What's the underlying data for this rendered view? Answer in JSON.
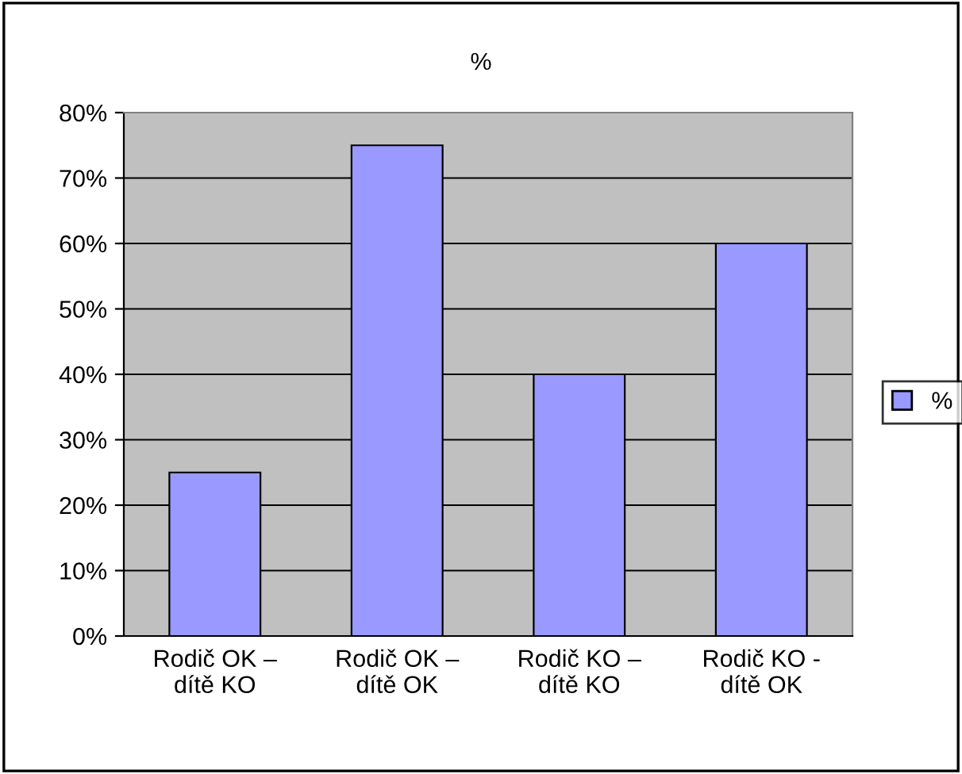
{
  "chart_data": {
    "type": "bar",
    "title": "%",
    "categories": [
      "Rodič OK –\ndítě KO",
      "Rodič OK –\ndítě OK",
      "Rodič KO –\ndítě KO",
      "Rodič KO -\ndítě OK"
    ],
    "series": [
      {
        "name": "%",
        "color": "#9999ff",
        "values": [
          25,
          75,
          40,
          60
        ]
      }
    ],
    "ylim": [
      0,
      80
    ],
    "yticks": [
      {
        "value": 0,
        "label": "0%"
      },
      {
        "value": 10,
        "label": "10%"
      },
      {
        "value": 20,
        "label": "20%"
      },
      {
        "value": 30,
        "label": "30%"
      },
      {
        "value": 40,
        "label": "40%"
      },
      {
        "value": 50,
        "label": "50%"
      },
      {
        "value": 60,
        "label": "60%"
      },
      {
        "value": 70,
        "label": "70%"
      },
      {
        "value": 80,
        "label": "80%"
      }
    ],
    "grid": "y",
    "legend": "right"
  }
}
